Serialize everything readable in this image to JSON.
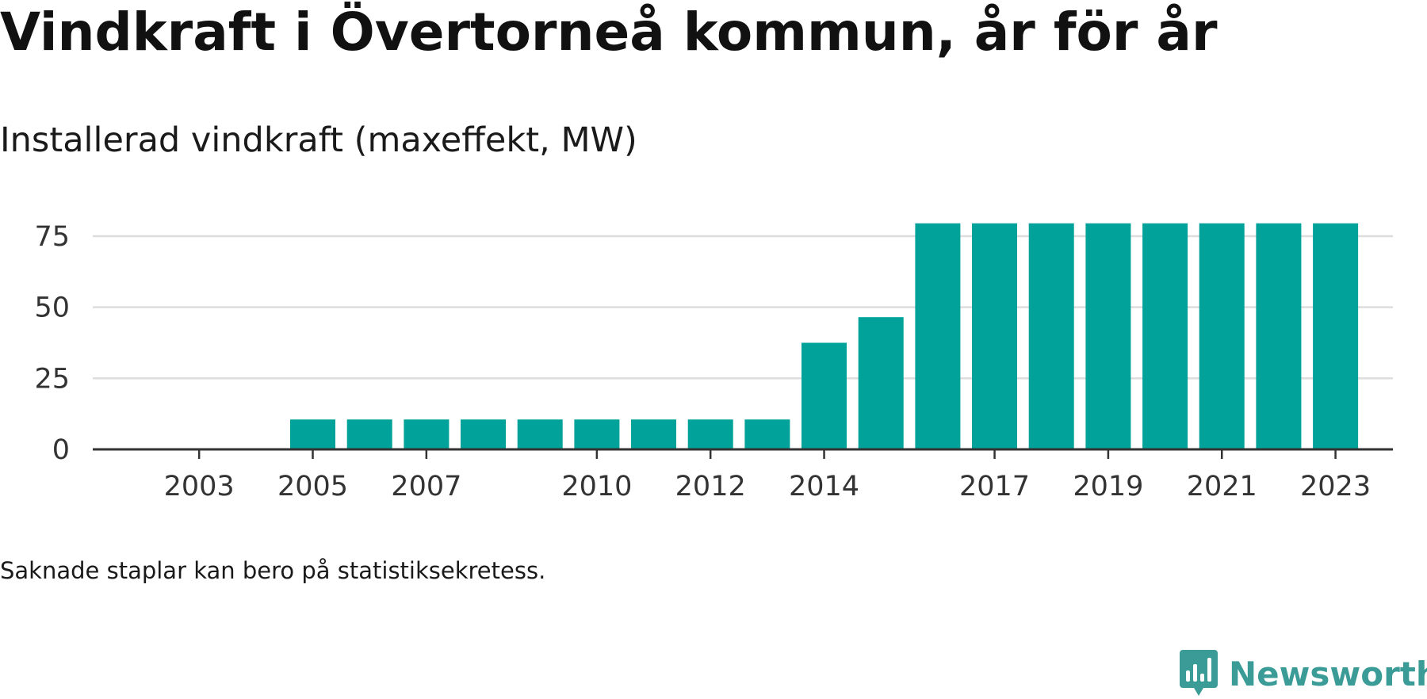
{
  "title": "Vindkraft i Övertorneå kommun, år för år",
  "subtitle": "Installerad vindkraft (maxeffekt, MW)",
  "note": "Saknade staplar kan bero på statistiksekretess.",
  "brand": {
    "name": "Newsworthy",
    "color": "#3b9c97",
    "icon": "newsworthy-logo-icon"
  },
  "colors": {
    "bar": "#00a29a",
    "grid": "#dddddd",
    "axis": "#333333"
  },
  "chart_data": {
    "type": "bar",
    "title": "Vindkraft i Övertorneå kommun, år för år",
    "subtitle": "Installerad vindkraft (maxeffekt, MW)",
    "xlabel": "",
    "ylabel": "",
    "categories": [
      2002,
      2003,
      2004,
      2005,
      2006,
      2007,
      2008,
      2009,
      2010,
      2011,
      2012,
      2013,
      2014,
      2015,
      2016,
      2017,
      2018,
      2019,
      2020,
      2021,
      2022,
      2023
    ],
    "values": [
      null,
      null,
      null,
      10.5,
      10.5,
      10.5,
      10.5,
      10.5,
      10.5,
      10.5,
      10.5,
      10.5,
      37.5,
      46.5,
      79.5,
      79.5,
      79.5,
      79.5,
      79.5,
      79.5,
      79.5,
      79.5
    ],
    "x_tick_labels": [
      "2003",
      "2005",
      "2007",
      "2010",
      "2012",
      "2014",
      "2017",
      "2019",
      "2021",
      "2023"
    ],
    "y_ticks": [
      0,
      25,
      50,
      75
    ],
    "ylim": [
      0,
      80
    ],
    "grid": true,
    "legend": "none"
  }
}
